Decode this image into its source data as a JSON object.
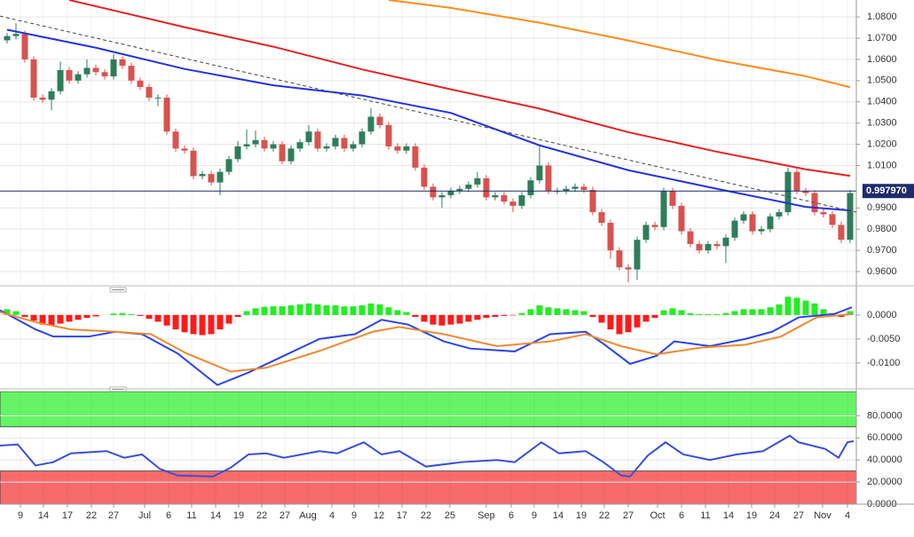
{
  "chart_data": [
    {
      "type": "candlestick",
      "xlim": [
        -0.8,
        95.7
      ],
      "ylim": [
        0.9533,
        1.088
      ],
      "up_color": "#2e7d5b",
      "down_color": "#d9534f",
      "grid": true,
      "yticks": [
        {
          "value": 0.96,
          "label": "0.9600"
        },
        {
          "value": 0.97,
          "label": "0.9700"
        },
        {
          "value": 0.98,
          "label": "0.9800"
        },
        {
          "value": 0.99,
          "label": "0.9900"
        },
        {
          "value": 1.01,
          "label": "1.0100"
        },
        {
          "value": 1.02,
          "label": "1.0200"
        },
        {
          "value": 1.03,
          "label": "1.0300"
        },
        {
          "value": 1.04,
          "label": "1.0400"
        },
        {
          "value": 1.05,
          "label": "1.0500"
        },
        {
          "value": 1.06,
          "label": "1.0600"
        },
        {
          "value": 1.07,
          "label": "1.0700"
        },
        {
          "value": 1.08,
          "label": "1.0800"
        }
      ],
      "open": [
        1.069,
        1.071,
        1.072,
        1.06,
        1.042,
        1.041,
        1.045,
        1.055,
        1.05,
        1.053,
        1.056,
        1.054,
        1.052,
        1.06,
        1.057,
        1.05,
        1.047,
        1.042,
        1.042,
        1.026,
        1.018,
        1.017,
        1.005,
        1.006,
        1.002,
        1.007,
        1.013,
        1.019,
        1.02,
        1.022,
        1.018,
        1.02,
        1.012,
        1.018,
        1.021,
        1.026,
        1.018,
        1.019,
        1.023,
        1.018,
        1.02,
        1.026,
        1.033,
        1.029,
        1.019,
        1.017,
        1.019,
        1.009,
        1.0,
        0.995,
        0.996,
        0.998,
        0.999,
        1.001,
        1.004,
        0.995,
        0.996,
        0.993,
        0.991,
        0.996,
        1.003,
        1.01,
        0.998,
        0.998,
        0.999,
        1.0,
        0.9985,
        0.988,
        0.983,
        0.97,
        0.962,
        0.961,
        0.975,
        0.982,
        0.981,
        0.998,
        0.991,
        0.979,
        0.973,
        0.97,
        0.973,
        0.972,
        0.976,
        0.984,
        0.987,
        0.979,
        0.98,
        0.986,
        0.988,
        1.007,
        0.998,
        0.997,
        0.988,
        0.987,
        0.982,
        0.975
      ],
      "high": [
        1.0725,
        1.077,
        1.0735,
        1.0615,
        1.0435,
        1.0465,
        1.059,
        1.0565,
        1.0545,
        1.06,
        1.0575,
        1.0555,
        1.0625,
        1.0615,
        1.0585,
        1.0515,
        1.0485,
        1.0435,
        1.0435,
        1.0275,
        1.0195,
        1.0185,
        1.0075,
        1.0075,
        1.0085,
        1.0145,
        1.0215,
        1.027,
        1.0265,
        1.0235,
        1.0215,
        1.0215,
        1.0195,
        1.0225,
        1.029,
        1.0275,
        1.0205,
        1.0245,
        1.0245,
        1.0215,
        1.0275,
        1.037,
        1.0345,
        1.0305,
        1.0205,
        1.0205,
        1.0205,
        1.0105,
        1.0015,
        0.9975,
        0.9995,
        1.0005,
        1.0025,
        1.007,
        1.0055,
        0.9975,
        0.9975,
        0.9945,
        0.9975,
        1.0045,
        1.02,
        1.0115,
        0.9995,
        1.0005,
        1.0015,
        1.0015,
        1.0,
        0.9895,
        0.9845,
        0.9715,
        0.9635,
        0.9765,
        0.9835,
        0.9835,
        0.9995,
        0.9995,
        0.9925,
        0.9805,
        0.9745,
        0.9745,
        0.9745,
        0.9775,
        0.9855,
        0.9885,
        0.9885,
        0.9815,
        0.9875,
        0.9895,
        1.009,
        1.0085,
        0.9995,
        0.9985,
        0.9895,
        0.9885,
        0.9835,
        0.9985
      ],
      "low": [
        1.0675,
        1.0695,
        1.0585,
        1.0405,
        1.0395,
        1.036,
        1.0435,
        1.0485,
        1.0485,
        1.0515,
        1.0525,
        1.0505,
        1.0505,
        1.0555,
        1.0485,
        1.0455,
        1.0405,
        1.038,
        1.0245,
        1.0165,
        1.0155,
        1.0035,
        1.0035,
        1.0005,
        0.996,
        1.0055,
        1.0115,
        1.0175,
        1.0185,
        1.0165,
        1.0165,
        1.0105,
        1.0105,
        1.0165,
        1.0195,
        1.0165,
        1.0165,
        1.0175,
        1.0165,
        1.0165,
        1.0185,
        1.0245,
        1.0275,
        1.0175,
        1.0155,
        1.0155,
        1.0075,
        0.9985,
        0.9935,
        0.99,
        0.9945,
        0.9965,
        0.9975,
        0.9995,
        0.9935,
        0.9935,
        0.9915,
        0.988,
        0.9895,
        0.9945,
        1.0015,
        0.9965,
        0.9965,
        0.9965,
        0.9975,
        0.997,
        0.9865,
        0.9815,
        0.966,
        0.9605,
        0.955,
        0.956,
        0.9735,
        0.9795,
        0.9795,
        0.9895,
        0.9775,
        0.9715,
        0.9685,
        0.9685,
        0.9705,
        0.964,
        0.9745,
        0.9825,
        0.9775,
        0.9775,
        0.9785,
        0.9845,
        0.9865,
        0.9965,
        0.9955,
        0.9865,
        0.9855,
        0.9805,
        0.9735,
        0.9735
      ],
      "close": [
        1.071,
        1.072,
        1.06,
        1.042,
        1.041,
        1.045,
        1.055,
        1.05,
        1.053,
        1.056,
        1.054,
        1.052,
        1.06,
        1.057,
        1.05,
        1.047,
        1.042,
        1.042,
        1.026,
        1.018,
        1.017,
        1.005,
        1.006,
        1.002,
        1.007,
        1.013,
        1.019,
        1.02,
        1.022,
        1.018,
        1.02,
        1.012,
        1.018,
        1.021,
        1.026,
        1.018,
        1.019,
        1.023,
        1.018,
        1.02,
        1.026,
        1.033,
        1.029,
        1.019,
        1.017,
        1.019,
        1.009,
        1.0,
        0.995,
        0.996,
        0.998,
        0.999,
        1.001,
        1.004,
        0.995,
        0.996,
        0.993,
        0.991,
        0.996,
        1.003,
        1.01,
        0.998,
        0.998,
        0.999,
        1.0,
        0.9985,
        0.988,
        0.983,
        0.97,
        0.962,
        0.961,
        0.975,
        0.982,
        0.981,
        0.998,
        0.991,
        0.979,
        0.973,
        0.97,
        0.973,
        0.972,
        0.976,
        0.984,
        0.987,
        0.979,
        0.98,
        0.986,
        0.988,
        1.007,
        0.998,
        0.997,
        0.988,
        0.987,
        0.982,
        0.975,
        0.997
      ],
      "overlays": [
        {
          "color": "#2433e0",
          "x": [
            0,
            10,
            20,
            30,
            40,
            50,
            60,
            70,
            80,
            90,
            95
          ],
          "values": [
            1.074,
            1.0655,
            1.0555,
            1.0478,
            1.043,
            1.0348,
            1.0195,
            1.0078,
            0.999,
            0.9905,
            0.9888
          ]
        },
        {
          "color": "#e62222",
          "x": [
            7,
            20,
            30,
            40,
            50,
            60,
            70,
            80,
            90,
            95
          ],
          "values": [
            1.088,
            1.0752,
            1.066,
            1.0553,
            1.0459,
            1.0368,
            1.0257,
            1.0165,
            1.0082,
            1.0051
          ]
        },
        {
          "color": "#ff8c1a",
          "x": [
            43,
            50,
            60,
            70,
            80,
            90,
            95
          ],
          "values": [
            1.088,
            1.0843,
            1.0773,
            1.0689,
            1.0597,
            1.0521,
            1.0469
          ]
        },
        {
          "color": "#444444",
          "dashed": true,
          "x": [
            -0.8,
            95.7
          ],
          "values": [
            1.0804,
            0.988
          ]
        }
      ],
      "last_price": 0.99797,
      "last_price_label": "0.997970",
      "last_price_color": "#1f2a6b"
    },
    {
      "type": "macd",
      "xlim": [
        -0.8,
        95.7
      ],
      "ylim": [
        -0.0152,
        0.0046
      ],
      "pos_color": "#22ee22",
      "neg_color": "#ff1a1a",
      "yticks": [
        {
          "value": 0,
          "label": "0.0000"
        },
        {
          "value": -0.005,
          "label": "-0.0050"
        },
        {
          "value": -0.01,
          "label": "-0.0100"
        }
      ],
      "histogram": [
        0.0012,
        0.0008,
        -0.0004,
        -0.0012,
        -0.002,
        -0.0022,
        -0.0018,
        -0.0014,
        -0.001,
        -0.0006,
        -0.0003,
        0.0,
        0.0003,
        0.0004,
        0.0002,
        -0.0002,
        -0.0008,
        -0.0014,
        -0.0022,
        -0.003,
        -0.0036,
        -0.004,
        -0.0042,
        -0.004,
        -0.003,
        -0.0018,
        -0.0004,
        0.0008,
        0.0014,
        0.0017,
        0.0018,
        0.0018,
        0.002,
        0.0022,
        0.0024,
        0.0022,
        0.002,
        0.002,
        0.0018,
        0.0018,
        0.002,
        0.0024,
        0.0022,
        0.0016,
        0.001,
        0.0006,
        -0.0004,
        -0.0014,
        -0.002,
        -0.0022,
        -0.002,
        -0.0018,
        -0.0014,
        -0.001,
        -0.0006,
        -0.0004,
        -0.0002,
        -0.0001,
        0.0004,
        0.0012,
        0.002,
        0.0016,
        0.0014,
        0.0012,
        0.001,
        0.0008,
        -0.0004,
        -0.0016,
        -0.003,
        -0.004,
        -0.0036,
        -0.0026,
        -0.0014,
        -0.0006,
        0.001,
        0.0014,
        0.001,
        0.0004,
        0.0002,
        0.0002,
        0.0002,
        0.0004,
        0.0008,
        0.0012,
        0.0012,
        0.0012,
        0.0016,
        0.0022,
        0.0038,
        0.0036,
        0.003,
        0.0024,
        0.0012,
        0.0004,
        -0.0004,
        0.0008
      ],
      "series": [
        {
          "color": "#2a45e8",
          "x": [
            -0.8,
            3.2,
            5.2,
            9.2,
            12.2,
            15.2,
            19.2,
            23.7,
            27.2,
            31.2,
            35.2,
            39.2,
            42.2,
            45.2,
            49.2,
            52.2,
            57.2,
            61.2,
            65.2,
            67.2,
            70.2,
            73.2,
            75.2,
            79.2,
            83.2,
            86.2,
            89.2,
            93.2,
            95.2
          ],
          "values": [
            0.001,
            -0.003,
            -0.0045,
            -0.0045,
            -0.0035,
            -0.004,
            -0.008,
            -0.0146,
            -0.012,
            -0.0085,
            -0.005,
            -0.004,
            -0.001,
            -0.002,
            -0.0055,
            -0.007,
            -0.0076,
            -0.004,
            -0.0035,
            -0.006,
            -0.0102,
            -0.0085,
            -0.0055,
            -0.0065,
            -0.005,
            -0.0035,
            -0.0005,
            0.0002,
            0.0016
          ]
        },
        {
          "color": "#f08a30",
          "x": [
            -0.8,
            3.2,
            7.2,
            12.2,
            16.2,
            20.2,
            25.2,
            29.2,
            35.2,
            41.2,
            44.2,
            49.2,
            55.2,
            61.2,
            65.2,
            69.2,
            73.2,
            78.2,
            83.2,
            87.2,
            91.2,
            95.2
          ],
          "values": [
            0.0006,
            -0.0015,
            -0.003,
            -0.0035,
            -0.004,
            -0.008,
            -0.0118,
            -0.011,
            -0.0075,
            -0.0035,
            -0.0025,
            -0.004,
            -0.0065,
            -0.0055,
            -0.004,
            -0.0065,
            -0.0082,
            -0.0068,
            -0.0062,
            -0.0045,
            -0.0005,
            0.0002
          ]
        }
      ]
    },
    {
      "type": "rsi",
      "xlim": [
        -0.8,
        95.7
      ],
      "ylim": [
        0,
        102
      ],
      "yticks": [
        {
          "value": 0,
          "label": "0.0000"
        },
        {
          "value": 20,
          "label": "20.0000"
        },
        {
          "value": 40,
          "label": "40.0000"
        },
        {
          "value": 60,
          "label": "60.0000"
        },
        {
          "value": 80,
          "label": "80.0000"
        }
      ],
      "bands": [
        {
          "range": [
            70,
            102
          ],
          "color": "#66f466"
        },
        {
          "range": [
            0,
            30
          ],
          "color": "#f76b6b"
        }
      ],
      "series": [
        {
          "color": "#3a4fd8",
          "x": [
            -0.8,
            1.2,
            3.2,
            5.2,
            7.2,
            11.2,
            13.2,
            15.2,
            17.2,
            19.2,
            23.2,
            25.2,
            27.2,
            29.2,
            31.2,
            35.2,
            37.2,
            40.2,
            42.2,
            44.2,
            47.2,
            51.2,
            55.2,
            57.2,
            60.2,
            62.2,
            65.2,
            67.2,
            69.2,
            70.2,
            72.2,
            74.2,
            76.2,
            79.2,
            82.2,
            85.2,
            88.2,
            89.2,
            92.2,
            93.7,
            94.7,
            95.4
          ],
          "values": [
            53,
            54,
            35,
            38,
            46,
            48,
            42,
            45,
            32,
            26,
            25,
            33,
            45,
            46,
            42,
            48,
            46,
            56,
            45,
            48,
            34,
            38,
            40,
            38,
            56,
            46,
            48,
            38,
            26,
            25,
            44,
            56,
            45,
            40,
            45,
            48,
            62,
            56,
            50,
            42,
            56,
            57
          ]
        }
      ],
      "xticks": [
        {
          "value": 1.5,
          "label": "9"
        },
        {
          "value": 4.1,
          "label": "14"
        },
        {
          "value": 6.8,
          "label": "17"
        },
        {
          "value": 9.5,
          "label": "22"
        },
        {
          "value": 12.0,
          "label": "27"
        },
        {
          "value": 15.5,
          "label": "Jul"
        },
        {
          "value": 18.2,
          "label": "6"
        },
        {
          "value": 20.8,
          "label": "11"
        },
        {
          "value": 23.5,
          "label": "14"
        },
        {
          "value": 26.1,
          "label": "19"
        },
        {
          "value": 28.7,
          "label": "22"
        },
        {
          "value": 31.3,
          "label": "27"
        },
        {
          "value": 33.9,
          "label": "Aug"
        },
        {
          "value": 36.6,
          "label": "4"
        },
        {
          "value": 39.1,
          "label": "9"
        },
        {
          "value": 41.9,
          "label": "12"
        },
        {
          "value": 44.5,
          "label": "17"
        },
        {
          "value": 47.2,
          "label": "22"
        },
        {
          "value": 49.9,
          "label": "25"
        },
        {
          "value": 54.0,
          "label": "Sep"
        },
        {
          "value": 56.8,
          "label": "6"
        },
        {
          "value": 59.4,
          "label": "9"
        },
        {
          "value": 62.1,
          "label": "14"
        },
        {
          "value": 64.7,
          "label": "19"
        },
        {
          "value": 67.3,
          "label": "22"
        },
        {
          "value": 70.0,
          "label": "27"
        },
        {
          "value": 73.3,
          "label": "Oct"
        },
        {
          "value": 76.0,
          "label": "6"
        },
        {
          "value": 78.7,
          "label": "11"
        },
        {
          "value": 81.3,
          "label": "14"
        },
        {
          "value": 83.9,
          "label": "19"
        },
        {
          "value": 86.5,
          "label": "24"
        },
        {
          "value": 89.2,
          "label": "27"
        },
        {
          "value": 91.9,
          "label": "Nov"
        },
        {
          "value": 94.7,
          "label": "4"
        }
      ]
    }
  ]
}
